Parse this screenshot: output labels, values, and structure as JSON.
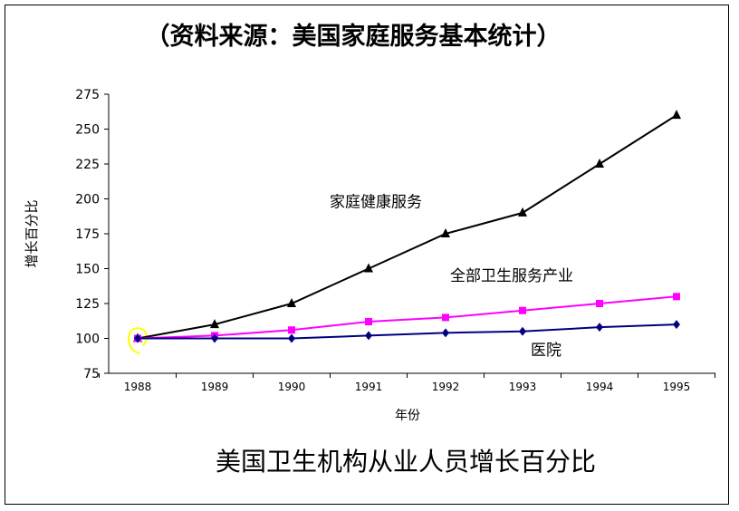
{
  "source_note": "（资料来源：美国家庭服务基本统计）",
  "chart_caption": "美国卫生机构从业人员增长百分比",
  "chart_data": {
    "type": "line",
    "title": "美国卫生机构从业人员增长百分比",
    "xlabel": "年份",
    "ylabel": "增长百分比",
    "x": [
      "1988",
      "1989",
      "1990",
      "1991",
      "1992",
      "1993",
      "1994",
      "1995"
    ],
    "ylim": [
      75,
      275
    ],
    "yticks": [
      75,
      100,
      125,
      150,
      175,
      200,
      225,
      250,
      275
    ],
    "grid": false,
    "series": [
      {
        "name": "家庭健康服务",
        "color": "#000000",
        "marker": "triangle",
        "values": [
          100,
          110,
          125,
          150,
          175,
          190,
          225,
          260
        ]
      },
      {
        "name": "全部卫生服务产业",
        "color": "#ff00ff",
        "marker": "square",
        "values": [
          100,
          102,
          106,
          112,
          115,
          120,
          125,
          130
        ]
      },
      {
        "name": "医院",
        "color": "#000080",
        "marker": "diamond",
        "values": [
          100,
          100,
          100,
          102,
          104,
          105,
          108,
          110
        ]
      }
    ],
    "highlight": {
      "x": "1988",
      "color": "#ffff00"
    }
  }
}
